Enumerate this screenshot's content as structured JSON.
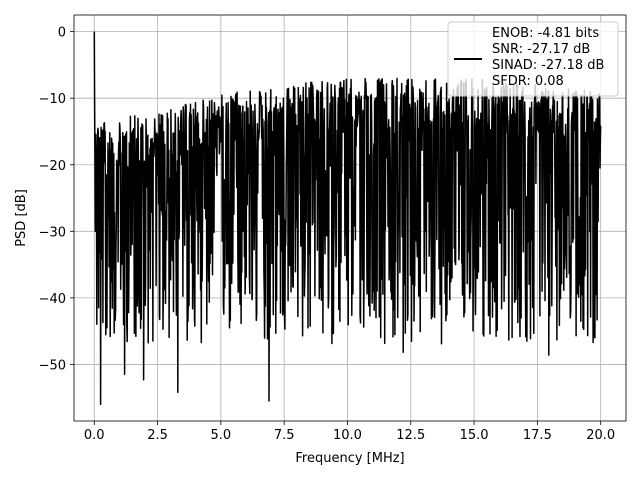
{
  "chart_data": {
    "type": "line",
    "title": "",
    "xlabel": "Frequency [MHz]",
    "ylabel": "PSD [dB]",
    "xlim": [
      -0.8,
      21.0
    ],
    "ylim": [
      -58.5,
      2.5
    ],
    "xticks": [
      0.0,
      2.5,
      5.0,
      7.5,
      10.0,
      12.5,
      15.0,
      17.5,
      20.0
    ],
    "xtick_labels": [
      "0.0",
      "2.5",
      "5.0",
      "7.5",
      "10.0",
      "12.5",
      "15.0",
      "17.5",
      "20.0"
    ],
    "yticks": [
      0,
      -10,
      -20,
      -30,
      -40,
      -50
    ],
    "ytick_labels": [
      "0",
      "−10",
      "−20",
      "−30",
      "−40",
      "−50"
    ],
    "grid": true,
    "legend_position": "top-right",
    "series": [
      {
        "name": "ENOB: -4.81 bits\nSNR: -27.17 dB\nSINAD: -27.18 dB\nSFDR: 0.08",
        "color": "#000000",
        "x_range": [
          0,
          20
        ],
        "peak": {
          "x": 0.0,
          "y": 0.0
        },
        "notable_minima": [
          {
            "x": 0.25,
            "y": -56.0
          },
          {
            "x": 0.5,
            "y": -44.5
          },
          {
            "x": 1.2,
            "y": -51.5
          },
          {
            "x": 1.95,
            "y": -52.3
          },
          {
            "x": 3.3,
            "y": -54.2
          },
          {
            "x": 6.9,
            "y": -55.5
          },
          {
            "x": 12.2,
            "y": -48.2
          },
          {
            "x": 17.95,
            "y": -48.6
          }
        ],
        "upper_envelope_approx": [
          {
            "x": 0.3,
            "y": -13.0
          },
          {
            "x": 2.5,
            "y": -12.0
          },
          {
            "x": 5.0,
            "y": -9.5
          },
          {
            "x": 7.5,
            "y": -8.0
          },
          {
            "x": 10.0,
            "y": -7.0
          },
          {
            "x": 12.5,
            "y": -7.0
          },
          {
            "x": 15.0,
            "y": -7.0
          },
          {
            "x": 17.5,
            "y": -8.0
          },
          {
            "x": 20.0,
            "y": -9.0
          }
        ],
        "typical_floor_approx": -35.0
      }
    ]
  }
}
